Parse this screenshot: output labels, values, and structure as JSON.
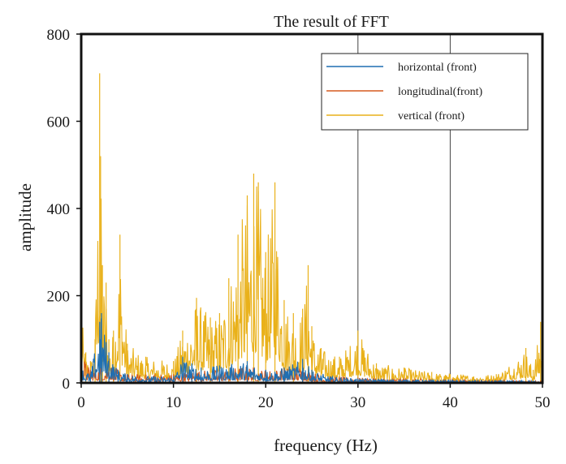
{
  "chart_data": {
    "type": "line",
    "title": "The result of FFT",
    "xlabel": "frequency (Hz)",
    "ylabel": "amplitude",
    "xlim": [
      0,
      50
    ],
    "ylim": [
      0,
      800
    ],
    "x_ticks": [
      "0",
      "10",
      "20",
      "30",
      "40",
      "50"
    ],
    "y_ticks": [
      "0",
      "200",
      "400",
      "600",
      "800"
    ],
    "grid": "vertical lines at x = 30 and x = 40",
    "legend_position": "top-right",
    "peaks_note_free": true,
    "series": [
      {
        "name": "horizontal (front)",
        "color": "#1f6fb2",
        "x": [
          0,
          1,
          2,
          2.2,
          3,
          4,
          5,
          8,
          10,
          11,
          12,
          13,
          15,
          18,
          20,
          22,
          24,
          25,
          27,
          30,
          35,
          40,
          45,
          50
        ],
        "values": [
          40,
          20,
          140,
          160,
          70,
          30,
          20,
          15,
          15,
          60,
          45,
          35,
          40,
          50,
          30,
          35,
          55,
          30,
          15,
          10,
          8,
          6,
          5,
          5
        ]
      },
      {
        "name": "longitudinal(front)",
        "color": "#d55a1e",
        "x": [
          0,
          1,
          2,
          3,
          4,
          5,
          8,
          10,
          12,
          15,
          18,
          20,
          22,
          24,
          25,
          27,
          30,
          35,
          40,
          45,
          50
        ],
        "values": [
          70,
          30,
          40,
          50,
          30,
          20,
          20,
          20,
          30,
          30,
          40,
          30,
          35,
          40,
          25,
          15,
          12,
          10,
          8,
          6,
          5
        ]
      },
      {
        "name": "vertical (front)",
        "color": "#e9b11a",
        "x": [
          0,
          0.5,
          1,
          1.5,
          2.0,
          2.1,
          2.3,
          2.7,
          3,
          3.5,
          4.2,
          5,
          7,
          10,
          11,
          12.5,
          14,
          15,
          16,
          17,
          18,
          18.7,
          19.2,
          20,
          21,
          22,
          23,
          24,
          24.6,
          25,
          26,
          28,
          30,
          32,
          35,
          38,
          40,
          45,
          48.2,
          49,
          49.8,
          50
        ],
        "values": [
          160,
          70,
          50,
          100,
          710,
          520,
          270,
          230,
          100,
          120,
          340,
          90,
          60,
          50,
          120,
          195,
          150,
          160,
          240,
          340,
          430,
          480,
          460,
          300,
          460,
          190,
          160,
          170,
          270,
          130,
          80,
          60,
          120,
          45,
          35,
          25,
          20,
          20,
          80,
          30,
          140,
          20
        ]
      }
    ]
  }
}
